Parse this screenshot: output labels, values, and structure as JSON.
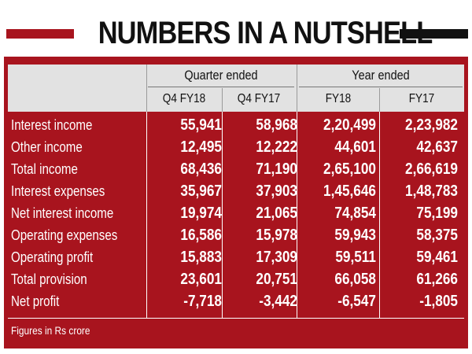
{
  "title": "NUMBERS IN A NUTSHELL",
  "colors": {
    "panel": "#a8141e",
    "header_band": "#e2e2e2",
    "left_bar": "#a8141e",
    "right_bar": "#111111",
    "text_light": "#ffffff",
    "text_dark": "#111111"
  },
  "table": {
    "groups": [
      "Quarter ended",
      "Year ended"
    ],
    "columns": [
      "Q4 FY18",
      "Q4 FY17",
      "FY18",
      "FY17"
    ],
    "rows": [
      {
        "label": "Interest income",
        "values": [
          "55,941",
          "58,968",
          "2,20,499",
          "2,23,982"
        ]
      },
      {
        "label": "Other income",
        "values": [
          "12,495",
          "12,222",
          "44,601",
          "42,637"
        ]
      },
      {
        "label": "Total income",
        "values": [
          "68,436",
          "71,190",
          "2,65,100",
          "2,66,619"
        ]
      },
      {
        "label": "Interest expenses",
        "values": [
          "35,967",
          "37,903",
          "1,45,646",
          "1,48,783"
        ]
      },
      {
        "label": "Net interest income",
        "values": [
          "19,974",
          "21,065",
          "74,854",
          "75,199"
        ]
      },
      {
        "label": "Operating expenses",
        "values": [
          "16,586",
          "15,978",
          "59,943",
          "58,375"
        ]
      },
      {
        "label": "Operating profit",
        "values": [
          "15,883",
          "17,309",
          "59,511",
          "59,461"
        ]
      },
      {
        "label": "Total provision",
        "values": [
          "23,601",
          "20,751",
          "66,058",
          "61,266"
        ]
      },
      {
        "label": "Net profit",
        "values": [
          "-7,718",
          "-3,442",
          "-6,547",
          "-1,805"
        ]
      }
    ]
  },
  "footnote": "Figures in Rs crore"
}
